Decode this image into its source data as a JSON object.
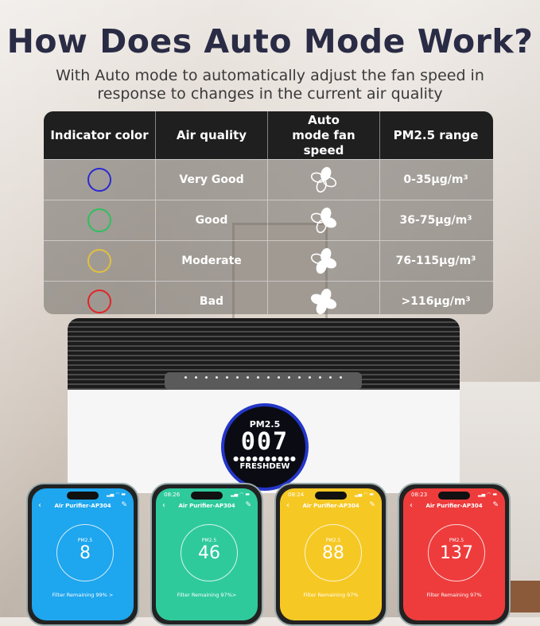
{
  "title": "How Does Auto Mode Work?",
  "subtitle_line1": "With Auto mode to automatically adjust the fan speed in",
  "subtitle_line2": "response to changes in the current air quality",
  "table": {
    "headers": [
      "Indicator color",
      "Air quality",
      "Auto mode fan speed",
      "PM2.5 range"
    ],
    "rows": [
      {
        "color": "#2a2ad0",
        "quality": "Very Good",
        "fan_icon": "fan-icon",
        "fan_level": 1,
        "range": "0-35µg/m³"
      },
      {
        "color": "#2fbf5f",
        "quality": "Good",
        "fan_icon": "fan-icon",
        "fan_level": 2,
        "range": "36-75µg/m³"
      },
      {
        "color": "#e0c040",
        "quality": "Moderate",
        "fan_icon": "fan-icon",
        "fan_level": 3,
        "range": "76-115µg/m³"
      },
      {
        "color": "#e02525",
        "quality": "Bad",
        "fan_icon": "fan-icon",
        "fan_level": 4,
        "range": ">116µg/m³"
      }
    ]
  },
  "device": {
    "display_label": "PM2.5",
    "display_value": "007",
    "brand": "FRESHDEW"
  },
  "phones": [
    {
      "time": "",
      "color": "#1ea6ee",
      "title": "Air Purifier-AP304",
      "label": "PM2.5",
      "value": "8",
      "filter": "Filter Remaining 99% >"
    },
    {
      "time": "08:26",
      "color": "#2fca9c",
      "title": "Air Purifier-AP304",
      "label": "PM2.5",
      "value": "46",
      "filter": "Filter Remaining 97%>"
    },
    {
      "time": "08:24",
      "color": "#f6c824",
      "title": "Air Purifier-AP304",
      "label": "PM2.5",
      "value": "88",
      "filter": "Filter Remaining 97%"
    },
    {
      "time": "08:23",
      "color": "#ee3c3c",
      "title": "Air Purifier-AP304",
      "label": "PM2.5",
      "value": "137",
      "filter": "Filter Remaining 97%"
    }
  ]
}
